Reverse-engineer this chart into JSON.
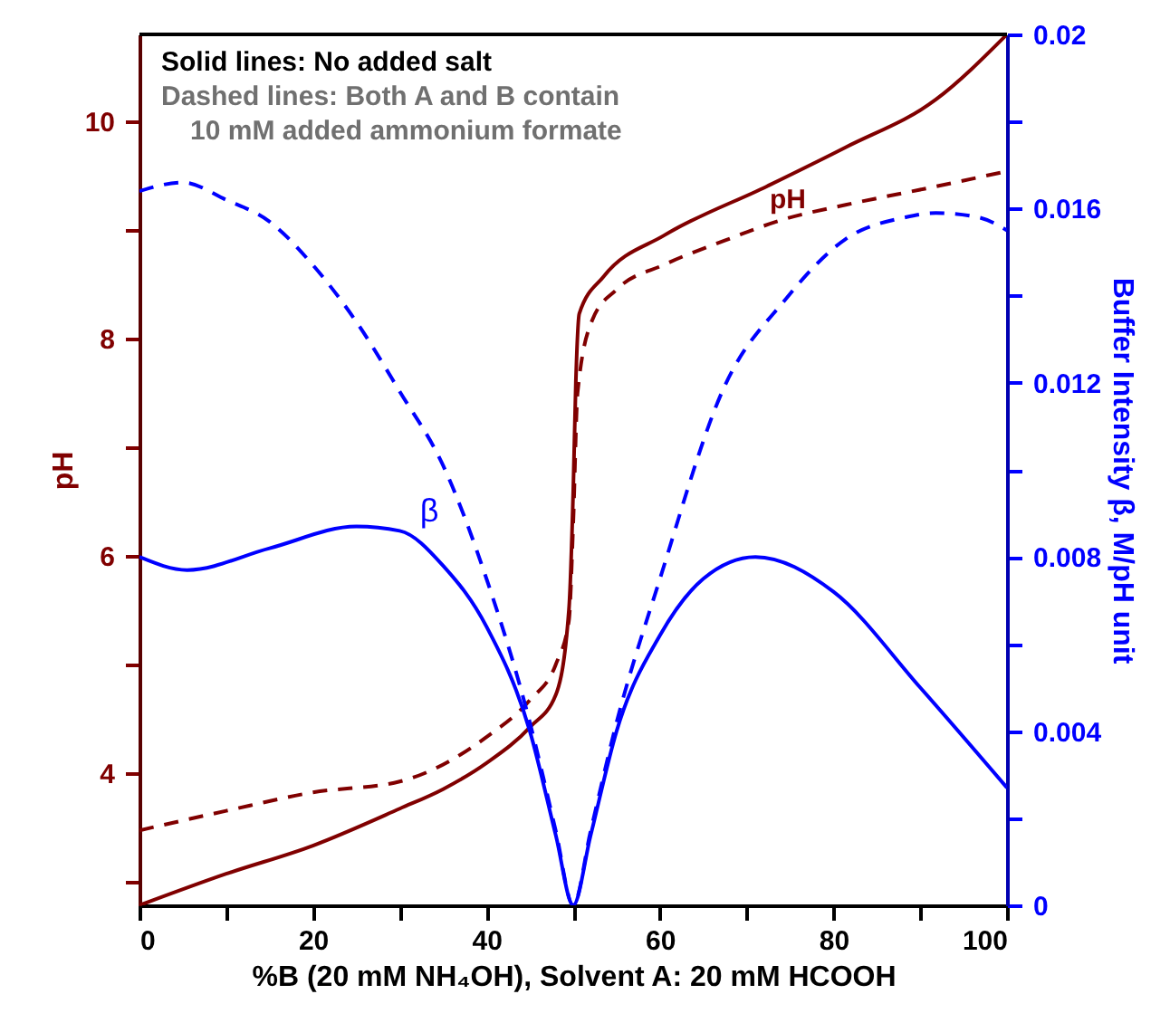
{
  "chart_data": {
    "type": "line",
    "xlabel": "%B (20 mM NH₄OH), Solvent A: 20 mM HCOOH",
    "ylabel": "pH",
    "y2label": "Buffer Intensity β, M/pH unit",
    "annotations": [
      "Solid lines: No added salt",
      "Dashed lines: Both A and B contain",
      "10 mM added ammonium formate",
      "pH",
      "β"
    ],
    "xlim": [
      0,
      100
    ],
    "xticks": [
      0,
      {
        "value": 10,
        "label": null
      },
      20,
      {
        "value": 30,
        "label": null
      },
      40,
      {
        "value": 50,
        "label": null
      },
      60,
      {
        "value": 70,
        "label": null
      },
      80,
      {
        "value": 90,
        "label": null
      },
      100
    ],
    "ylim": [
      2.78,
      10.8
    ],
    "yticks": [
      {
        "value": 3,
        "label": null
      },
      4,
      {
        "value": 5,
        "label": null
      },
      6,
      {
        "value": 7,
        "label": null
      },
      8,
      {
        "value": 9,
        "label": null
      },
      10
    ],
    "y2lim": [
      0,
      0.02
    ],
    "y2ticks": [
      0,
      {
        "value": 0.002,
        "label": null
      },
      0.004,
      {
        "value": 0.006,
        "label": null
      },
      0.008,
      {
        "value": 0.01,
        "label": null
      },
      0.012,
      {
        "value": 0.014,
        "label": null
      },
      0.016,
      {
        "value": 0.018,
        "label": null
      },
      0.02
    ],
    "grid": false,
    "marker": "none",
    "series": [
      {
        "color": "#800000",
        "line_style": "solid",
        "x": [
          0,
          10,
          20,
          30,
          35,
          40,
          45,
          48,
          49.5,
          50,
          50.3,
          50.7,
          53.5,
          60.5,
          72.3,
          81.4,
          91.8,
          100
        ],
        "values": [
          2.78,
          3.07,
          3.33,
          3.67,
          3.85,
          4.09,
          4.42,
          4.72,
          5.5,
          6.6,
          7.6,
          8.23,
          8.57,
          8.95,
          9.4,
          9.76,
          10.2,
          10.8
        ]
      },
      {
        "color": "#800000",
        "line_style": "dashed",
        "x": [
          0,
          10,
          20,
          30,
          40,
          45,
          48,
          49.5,
          50,
          50.5,
          52.2,
          55,
          60.5,
          67.4,
          74.4,
          81.4,
          91.8,
          100
        ],
        "values": [
          3.47,
          3.65,
          3.82,
          3.92,
          4.33,
          4.67,
          5.0,
          5.4,
          6.3,
          7.5,
          8.17,
          8.45,
          8.68,
          8.9,
          9.1,
          9.23,
          9.4,
          9.54
        ]
      },
      {
        "color": "#0000ff",
        "line_style": "solid",
        "axis": "y2",
        "x": [
          0,
          5.5,
          15,
          25,
          30,
          35,
          40,
          45,
          48,
          50,
          52,
          55,
          60,
          65,
          71,
          80,
          90,
          100
        ],
        "values": [
          0.008,
          0.0077,
          0.0082,
          0.0087,
          0.0086,
          0.0078,
          0.0064,
          0.004,
          0.0016,
          0,
          0.0016,
          0.004,
          0.0062,
          0.0075,
          0.008,
          0.0072,
          0.005,
          0.0027
        ]
      },
      {
        "color": "#0000ff",
        "line_style": "dashed",
        "axis": "y2",
        "x": [
          0,
          5,
          10,
          15,
          20,
          25,
          30,
          35,
          40,
          45,
          48,
          50,
          52,
          55,
          60,
          67.4,
          74.4,
          81.4,
          88.3,
          91.8,
          96.7,
          100
        ],
        "values": [
          0.0164,
          0.0166,
          0.0162,
          0.0157,
          0.0147,
          0.0134,
          0.0118,
          0.0101,
          0.0075,
          0.0042,
          0.0017,
          0,
          0.0017,
          0.0042,
          0.0075,
          0.0119,
          0.0139,
          0.0153,
          0.0158,
          0.0159,
          0.0158,
          0.0155
        ]
      }
    ]
  }
}
